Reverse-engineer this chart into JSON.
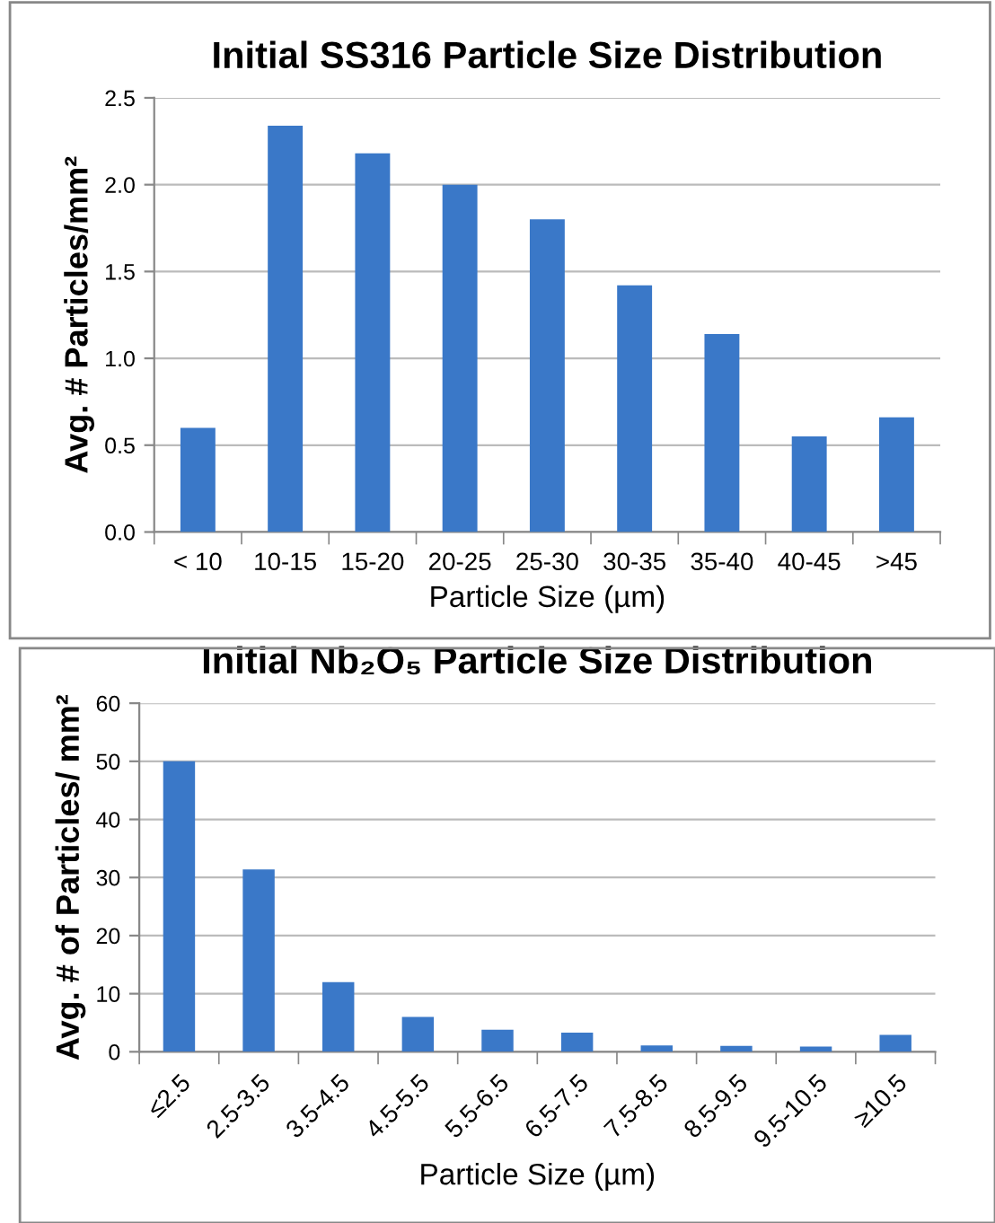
{
  "chart_data": [
    {
      "type": "bar",
      "title": "Initial SS316 Particle Size Distribution",
      "xlabel": "Particle Size (µm)",
      "ylabel": "Avg. # Particles/mm²",
      "categories": [
        "< 10",
        "10-15",
        "15-20",
        "20-25",
        "25-30",
        "30-35",
        "35-40",
        "40-45",
        ">45"
      ],
      "values": [
        0.6,
        2.34,
        2.18,
        2.0,
        1.8,
        1.42,
        1.14,
        0.55,
        0.66
      ],
      "color": "#3a78c8",
      "ylim": [
        0,
        2.5
      ],
      "yticks": [
        {
          "value": 0,
          "label": "0.0"
        },
        {
          "value": 0.5,
          "label": "0.5"
        },
        {
          "value": 1,
          "label": "1.0"
        },
        {
          "value": 1.5,
          "label": "1.5"
        },
        {
          "value": 2,
          "label": "2.0"
        },
        {
          "value": 2.5,
          "label": "2.5"
        }
      ],
      "grid": "y"
    },
    {
      "type": "bar",
      "title": "Initial Nb₂O₅ Particle Size Distribution",
      "xlabel": "Particle Size (µm)",
      "ylabel": "Avg. # of Particles/ mm²",
      "categories": [
        "≤2.5",
        "2.5-3.5",
        "3.5-4.5",
        "4.5-5.5",
        "5.5-6.5",
        "6.5-7.5",
        "7.5-8.5",
        "8.5-9.5",
        "9.5-10.5",
        "≥10.5"
      ],
      "values": [
        50,
        31.4,
        12,
        6,
        3.8,
        3.3,
        1.1,
        1.0,
        0.9,
        2.9
      ],
      "color": "#3a78c8",
      "ylim": [
        0,
        60
      ],
      "yticks": [
        0,
        10,
        20,
        30,
        40,
        50,
        60
      ],
      "grid": "y"
    }
  ]
}
